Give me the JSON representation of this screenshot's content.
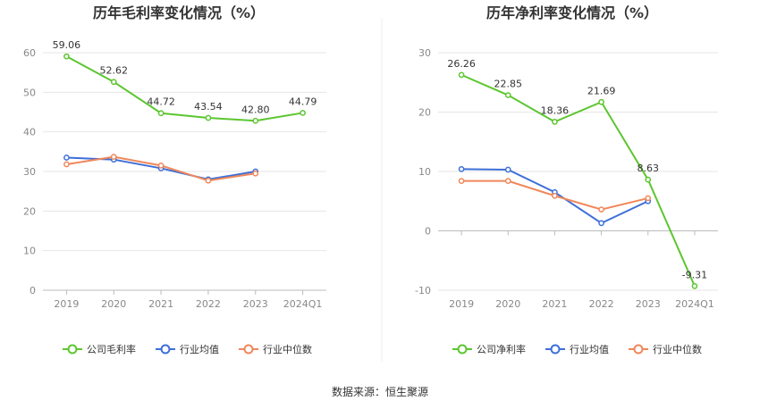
{
  "source_note": "数据来源：恒生聚源",
  "colors": {
    "company": "#5cc630",
    "industry_avg": "#3e6fd8",
    "industry_median": "#f0875a"
  },
  "chart_data": [
    {
      "type": "line",
      "title": "历年毛利率变化情况（%）",
      "categories": [
        "2019",
        "2020",
        "2021",
        "2022",
        "2023",
        "2024Q1"
      ],
      "ylim": [
        0,
        60
      ],
      "yticks": [
        "0",
        "10",
        "20",
        "30",
        "40",
        "50",
        "60"
      ],
      "grid": true,
      "legend_position": "bottom",
      "series": [
        {
          "name": "公司毛利率",
          "values": [
            59.06,
            52.62,
            44.72,
            43.54,
            42.8,
            44.79
          ],
          "labels": [
            "59.06",
            "52.62",
            "44.72",
            "43.54",
            "42.80",
            "44.79"
          ]
        },
        {
          "name": "行业均值",
          "values": [
            33.5,
            33.0,
            30.8,
            28.0,
            30.0,
            null
          ]
        },
        {
          "name": "行业中位数",
          "values": [
            31.8,
            33.7,
            31.5,
            27.7,
            29.5,
            null
          ]
        }
      ]
    },
    {
      "type": "line",
      "title": "历年净利率变化情况（%）",
      "categories": [
        "2019",
        "2020",
        "2021",
        "2022",
        "2023",
        "2024Q1"
      ],
      "ylim": [
        -10,
        30
      ],
      "yticks": [
        "-10",
        "0",
        "10",
        "20",
        "30"
      ],
      "grid": true,
      "legend_position": "bottom",
      "series": [
        {
          "name": "公司净利率",
          "values": [
            26.26,
            22.85,
            18.36,
            21.69,
            8.63,
            -9.31
          ],
          "labels": [
            "26.26",
            "22.85",
            "18.36",
            "21.69",
            "8.63",
            "-9.31"
          ]
        },
        {
          "name": "行业均值",
          "values": [
            10.4,
            10.3,
            6.5,
            1.3,
            5.0,
            null
          ]
        },
        {
          "name": "行业中位数",
          "values": [
            8.4,
            8.4,
            5.9,
            3.6,
            5.5,
            null
          ]
        }
      ]
    }
  ]
}
